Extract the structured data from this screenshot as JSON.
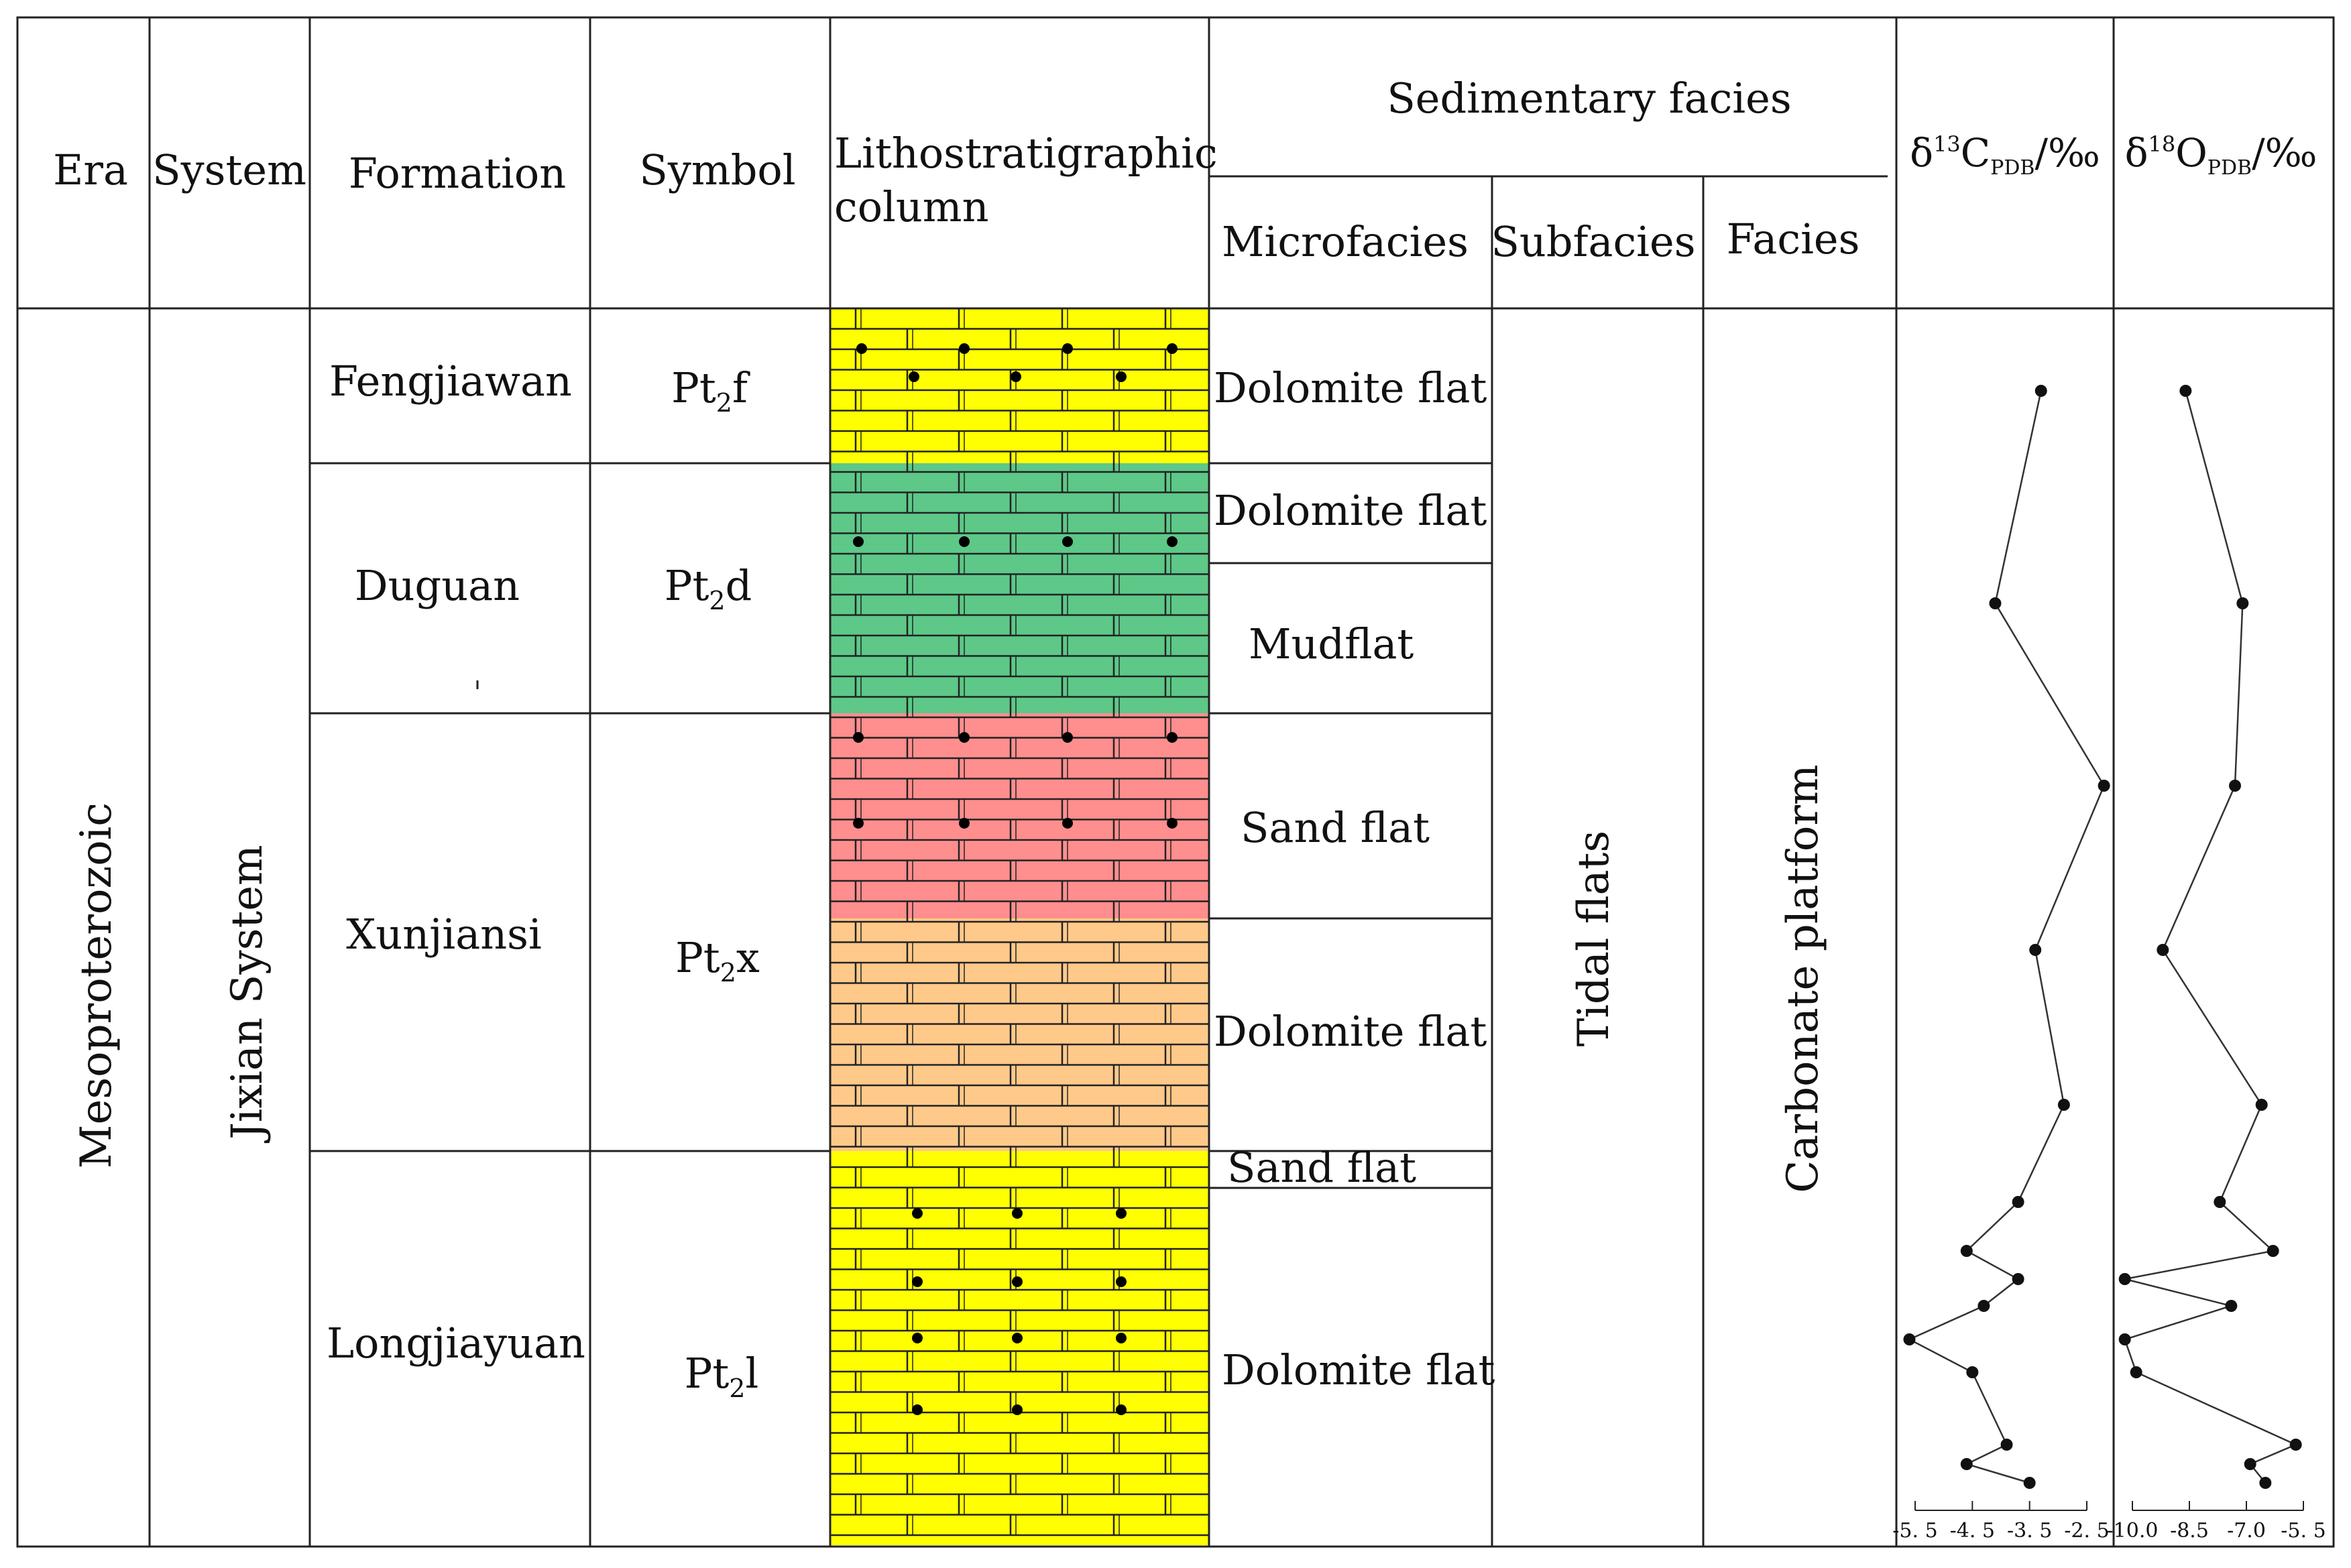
{
  "header": {
    "era": "Era",
    "system": "System",
    "formation": "Formation",
    "symbol": "Symbol",
    "litho_line1": "Lithostratigraphic",
    "litho_line2": "column",
    "sed_facies": "Sedimentary facies",
    "microfacies": "Microfacies",
    "subfacies": "Subfacies",
    "facies": "Facies",
    "d13c": "δ13CPDB/‰",
    "d18o": "δ18OPDB/‰"
  },
  "era": "Mesoproterozoic",
  "system": "Jixian System",
  "subfacies": "Tidal flats",
  "facies": "Carbonate platform",
  "formations": [
    {
      "name": "Fengjiawan",
      "symbol_base": "Pt",
      "symbol_sub": "2",
      "symbol_letter": "f"
    },
    {
      "name": "Duguan",
      "symbol_base": "Pt",
      "symbol_sub": "2",
      "symbol_letter": "d"
    },
    {
      "name": "Xunjiansi",
      "symbol_base": "Pt",
      "symbol_sub": "2",
      "symbol_letter": "x"
    },
    {
      "name": "Longjiayuan",
      "symbol_base": "Pt",
      "symbol_sub": "2",
      "symbol_letter": "l"
    }
  ],
  "microfacies": [
    "Dolomite flat",
    "Dolomite flat",
    "Mudflat",
    "Sand flat",
    "Dolomite flat",
    "Sand flat",
    "Dolomite flat"
  ],
  "colors": {
    "yellow": "#ffff00",
    "green": "#5dc888",
    "red": "#ff8e8e",
    "orange": "#ffc98a",
    "line": "#222222"
  },
  "chart_data": [
    {
      "type": "line",
      "title": "δ13CPDB/‰",
      "axis": "x",
      "xlim": [
        -5.5,
        -2.5
      ],
      "ticks": [
        -5.5,
        -4.5,
        -3.5,
        -2.5
      ],
      "tick_labels": [
        "-5. 5",
        "-4. 5",
        "-3. 5",
        "-2. 5"
      ],
      "points": [
        {
          "order": 1,
          "value": -3.3
        },
        {
          "order": 2,
          "value": -4.1
        },
        {
          "order": 3,
          "value": -2.2
        },
        {
          "order": 4,
          "value": -3.4
        },
        {
          "order": 5,
          "value": -2.9
        },
        {
          "order": 6,
          "value": -3.7
        },
        {
          "order": 7,
          "value": -4.6
        },
        {
          "order": 8,
          "value": -3.7
        },
        {
          "order": 9,
          "value": -4.3
        },
        {
          "order": 10,
          "value": -5.6
        },
        {
          "order": 11,
          "value": -4.5
        },
        {
          "order": 12,
          "value": -3.9
        },
        {
          "order": 13,
          "value": -4.6
        },
        {
          "order": 14,
          "value": -3.5
        }
      ]
    },
    {
      "type": "line",
      "title": "δ18OPDB/‰",
      "axis": "x",
      "xlim": [
        -10.0,
        -5.5
      ],
      "ticks": [
        -10.0,
        -8.5,
        -7.0,
        -5.5
      ],
      "tick_labels": [
        "-10.0",
        "-8.5",
        "-7.0",
        "-5. 5"
      ],
      "points": [
        {
          "order": 1,
          "value": -8.6
        },
        {
          "order": 2,
          "value": -7.1
        },
        {
          "order": 3,
          "value": -7.3
        },
        {
          "order": 4,
          "value": -9.2
        },
        {
          "order": 5,
          "value": -6.6
        },
        {
          "order": 6,
          "value": -7.7
        },
        {
          "order": 7,
          "value": -6.3
        },
        {
          "order": 8,
          "value": -10.2
        },
        {
          "order": 9,
          "value": -7.4
        },
        {
          "order": 10,
          "value": -10.2
        },
        {
          "order": 11,
          "value": -9.9
        },
        {
          "order": 12,
          "value": -5.7
        },
        {
          "order": 13,
          "value": -6.9
        },
        {
          "order": 14,
          "value": -6.5
        }
      ]
    }
  ]
}
